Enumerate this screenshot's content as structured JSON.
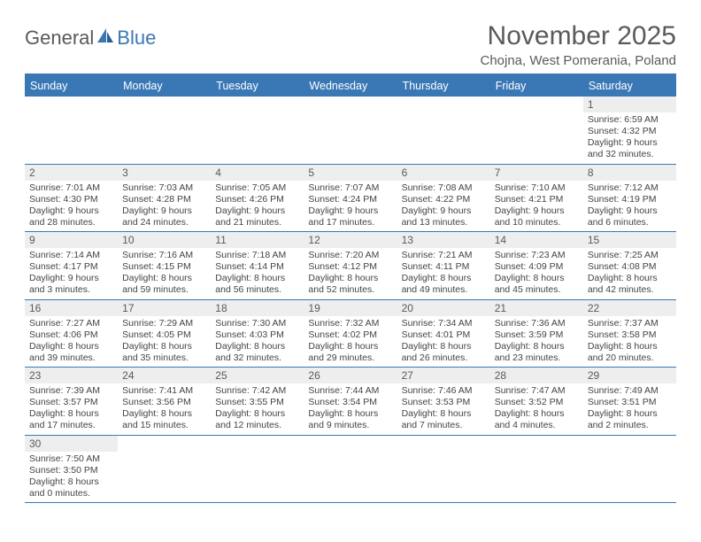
{
  "logo": {
    "part1": "General",
    "part2": "Blue"
  },
  "title": "November 2025",
  "subtitle": "Chojna, West Pomerania, Poland",
  "colors": {
    "header_bg": "#3a78b5",
    "daynum_bg": "#eeeeee",
    "text": "#5a5a5a",
    "cell_text": "#444444",
    "border": "#3a78b5",
    "page_bg": "#ffffff"
  },
  "typography": {
    "title_fontsize": 30,
    "subtitle_fontsize": 15,
    "dayheader_fontsize": 12.5,
    "daynum_fontsize": 12,
    "info_fontsize": 10.5
  },
  "day_headers": [
    "Sunday",
    "Monday",
    "Tuesday",
    "Wednesday",
    "Thursday",
    "Friday",
    "Saturday"
  ],
  "weeks": [
    [
      null,
      null,
      null,
      null,
      null,
      null,
      {
        "n": "1",
        "sr": "Sunrise: 6:59 AM",
        "ss": "Sunset: 4:32 PM",
        "d1": "Daylight: 9 hours",
        "d2": "and 32 minutes."
      }
    ],
    [
      {
        "n": "2",
        "sr": "Sunrise: 7:01 AM",
        "ss": "Sunset: 4:30 PM",
        "d1": "Daylight: 9 hours",
        "d2": "and 28 minutes."
      },
      {
        "n": "3",
        "sr": "Sunrise: 7:03 AM",
        "ss": "Sunset: 4:28 PM",
        "d1": "Daylight: 9 hours",
        "d2": "and 24 minutes."
      },
      {
        "n": "4",
        "sr": "Sunrise: 7:05 AM",
        "ss": "Sunset: 4:26 PM",
        "d1": "Daylight: 9 hours",
        "d2": "and 21 minutes."
      },
      {
        "n": "5",
        "sr": "Sunrise: 7:07 AM",
        "ss": "Sunset: 4:24 PM",
        "d1": "Daylight: 9 hours",
        "d2": "and 17 minutes."
      },
      {
        "n": "6",
        "sr": "Sunrise: 7:08 AM",
        "ss": "Sunset: 4:22 PM",
        "d1": "Daylight: 9 hours",
        "d2": "and 13 minutes."
      },
      {
        "n": "7",
        "sr": "Sunrise: 7:10 AM",
        "ss": "Sunset: 4:21 PM",
        "d1": "Daylight: 9 hours",
        "d2": "and 10 minutes."
      },
      {
        "n": "8",
        "sr": "Sunrise: 7:12 AM",
        "ss": "Sunset: 4:19 PM",
        "d1": "Daylight: 9 hours",
        "d2": "and 6 minutes."
      }
    ],
    [
      {
        "n": "9",
        "sr": "Sunrise: 7:14 AM",
        "ss": "Sunset: 4:17 PM",
        "d1": "Daylight: 9 hours",
        "d2": "and 3 minutes."
      },
      {
        "n": "10",
        "sr": "Sunrise: 7:16 AM",
        "ss": "Sunset: 4:15 PM",
        "d1": "Daylight: 8 hours",
        "d2": "and 59 minutes."
      },
      {
        "n": "11",
        "sr": "Sunrise: 7:18 AM",
        "ss": "Sunset: 4:14 PM",
        "d1": "Daylight: 8 hours",
        "d2": "and 56 minutes."
      },
      {
        "n": "12",
        "sr": "Sunrise: 7:20 AM",
        "ss": "Sunset: 4:12 PM",
        "d1": "Daylight: 8 hours",
        "d2": "and 52 minutes."
      },
      {
        "n": "13",
        "sr": "Sunrise: 7:21 AM",
        "ss": "Sunset: 4:11 PM",
        "d1": "Daylight: 8 hours",
        "d2": "and 49 minutes."
      },
      {
        "n": "14",
        "sr": "Sunrise: 7:23 AM",
        "ss": "Sunset: 4:09 PM",
        "d1": "Daylight: 8 hours",
        "d2": "and 45 minutes."
      },
      {
        "n": "15",
        "sr": "Sunrise: 7:25 AM",
        "ss": "Sunset: 4:08 PM",
        "d1": "Daylight: 8 hours",
        "d2": "and 42 minutes."
      }
    ],
    [
      {
        "n": "16",
        "sr": "Sunrise: 7:27 AM",
        "ss": "Sunset: 4:06 PM",
        "d1": "Daylight: 8 hours",
        "d2": "and 39 minutes."
      },
      {
        "n": "17",
        "sr": "Sunrise: 7:29 AM",
        "ss": "Sunset: 4:05 PM",
        "d1": "Daylight: 8 hours",
        "d2": "and 35 minutes."
      },
      {
        "n": "18",
        "sr": "Sunrise: 7:30 AM",
        "ss": "Sunset: 4:03 PM",
        "d1": "Daylight: 8 hours",
        "d2": "and 32 minutes."
      },
      {
        "n": "19",
        "sr": "Sunrise: 7:32 AM",
        "ss": "Sunset: 4:02 PM",
        "d1": "Daylight: 8 hours",
        "d2": "and 29 minutes."
      },
      {
        "n": "20",
        "sr": "Sunrise: 7:34 AM",
        "ss": "Sunset: 4:01 PM",
        "d1": "Daylight: 8 hours",
        "d2": "and 26 minutes."
      },
      {
        "n": "21",
        "sr": "Sunrise: 7:36 AM",
        "ss": "Sunset: 3:59 PM",
        "d1": "Daylight: 8 hours",
        "d2": "and 23 minutes."
      },
      {
        "n": "22",
        "sr": "Sunrise: 7:37 AM",
        "ss": "Sunset: 3:58 PM",
        "d1": "Daylight: 8 hours",
        "d2": "and 20 minutes."
      }
    ],
    [
      {
        "n": "23",
        "sr": "Sunrise: 7:39 AM",
        "ss": "Sunset: 3:57 PM",
        "d1": "Daylight: 8 hours",
        "d2": "and 17 minutes."
      },
      {
        "n": "24",
        "sr": "Sunrise: 7:41 AM",
        "ss": "Sunset: 3:56 PM",
        "d1": "Daylight: 8 hours",
        "d2": "and 15 minutes."
      },
      {
        "n": "25",
        "sr": "Sunrise: 7:42 AM",
        "ss": "Sunset: 3:55 PM",
        "d1": "Daylight: 8 hours",
        "d2": "and 12 minutes."
      },
      {
        "n": "26",
        "sr": "Sunrise: 7:44 AM",
        "ss": "Sunset: 3:54 PM",
        "d1": "Daylight: 8 hours",
        "d2": "and 9 minutes."
      },
      {
        "n": "27",
        "sr": "Sunrise: 7:46 AM",
        "ss": "Sunset: 3:53 PM",
        "d1": "Daylight: 8 hours",
        "d2": "and 7 minutes."
      },
      {
        "n": "28",
        "sr": "Sunrise: 7:47 AM",
        "ss": "Sunset: 3:52 PM",
        "d1": "Daylight: 8 hours",
        "d2": "and 4 minutes."
      },
      {
        "n": "29",
        "sr": "Sunrise: 7:49 AM",
        "ss": "Sunset: 3:51 PM",
        "d1": "Daylight: 8 hours",
        "d2": "and 2 minutes."
      }
    ],
    [
      {
        "n": "30",
        "sr": "Sunrise: 7:50 AM",
        "ss": "Sunset: 3:50 PM",
        "d1": "Daylight: 8 hours",
        "d2": "and 0 minutes."
      },
      null,
      null,
      null,
      null,
      null,
      null
    ]
  ]
}
